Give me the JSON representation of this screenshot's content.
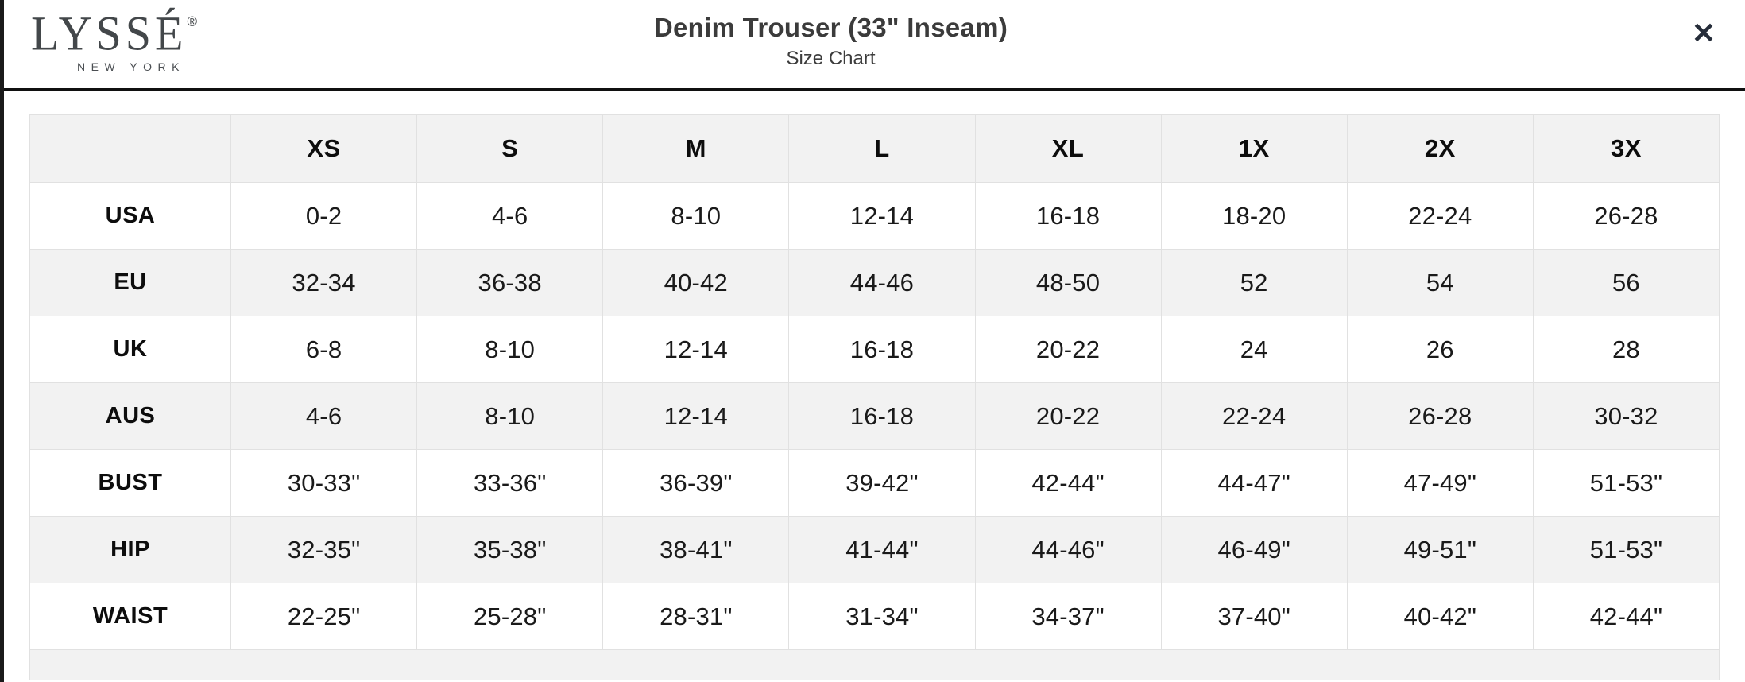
{
  "modal": {
    "logo": {
      "brand": "LYSSÉ",
      "registered": "®",
      "subtitle": "NEW YORK"
    },
    "title": "Denim Trouser (33\" Inseam)",
    "subtitle": "Size Chart",
    "close_label": "✕"
  },
  "colors": {
    "header_border": "#101010",
    "row_stripe": "#f2f2f2",
    "cell_border": "#e1e1e1",
    "text": "#141414",
    "close_icon": "#252c39"
  },
  "chart_data": {
    "type": "table",
    "title": "Denim Trouser (33\" Inseam) Size Chart",
    "columns": [
      "XS",
      "S",
      "M",
      "L",
      "XL",
      "1X",
      "2X",
      "3X"
    ],
    "rows": [
      {
        "label": "USA",
        "values": [
          "0-2",
          "4-6",
          "8-10",
          "12-14",
          "16-18",
          "18-20",
          "22-24",
          "26-28"
        ]
      },
      {
        "label": "EU",
        "values": [
          "32-34",
          "36-38",
          "40-42",
          "44-46",
          "48-50",
          "52",
          "54",
          "56"
        ]
      },
      {
        "label": "UK",
        "values": [
          "6-8",
          "8-10",
          "12-14",
          "16-18",
          "20-22",
          "24",
          "26",
          "28"
        ]
      },
      {
        "label": "AUS",
        "values": [
          "4-6",
          "8-10",
          "12-14",
          "16-18",
          "20-22",
          "22-24",
          "26-28",
          "30-32"
        ]
      },
      {
        "label": "BUST",
        "values": [
          "30-33\"",
          "33-36\"",
          "36-39\"",
          "39-42\"",
          "42-44\"",
          "44-47\"",
          "47-49\"",
          "51-53\""
        ]
      },
      {
        "label": "HIP",
        "values": [
          "32-35\"",
          "35-38\"",
          "38-41\"",
          "41-44\"",
          "44-46\"",
          "46-49\"",
          "49-51\"",
          "51-53\""
        ]
      },
      {
        "label": "WAIST",
        "values": [
          "22-25\"",
          "25-28\"",
          "28-31\"",
          "31-34\"",
          "34-37\"",
          "37-40\"",
          "40-42\"",
          "42-44\""
        ]
      }
    ]
  }
}
